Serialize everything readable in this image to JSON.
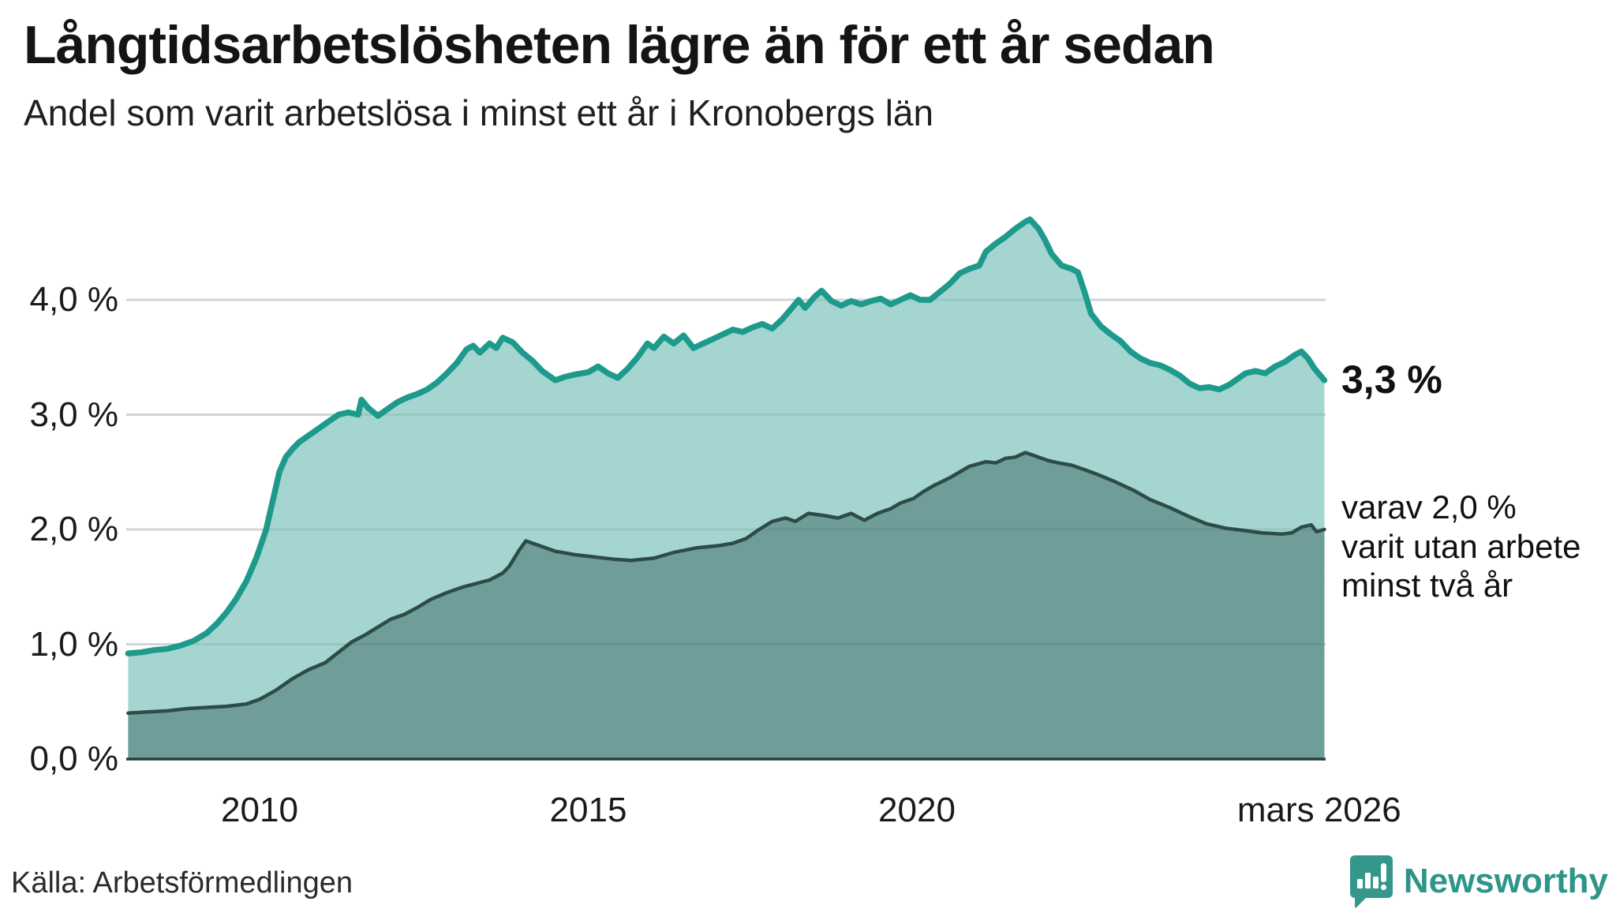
{
  "header": {
    "title": "Långtidsarbetslösheten lägre än för ett år sedan",
    "subtitle": "Andel som varit arbetslösa i minst ett år i Kronobergs län"
  },
  "annotations": {
    "end_value_label": "3,3 %",
    "end_note_lines": [
      "varav 2,0 %",
      "varit utan arbete",
      "minst två år"
    ]
  },
  "footer": {
    "source": "Källa: Arbetsförmedlingen",
    "brand": "Newsworthy"
  },
  "colors": {
    "line_one_year": "#1d9a8c",
    "fill_one_year": "#a4d5d0",
    "line_two_years": "#2d4c48",
    "fill_two_years": "#6f9d99",
    "gridline": "#e4e4e8",
    "gridline_overlay": "rgba(45,76,72,0.10)",
    "baseline": "#20403c",
    "brand_teal": "#2e958a"
  },
  "chart_data": {
    "type": "area",
    "title": "Långtidsarbetslösheten lägre än för ett år sedan",
    "subtitle": "Andel som varit arbetslösa i minst ett år i Kronobergs län",
    "unit": "%",
    "grid": true,
    "x_axis": {
      "range_years": [
        2008.0,
        2026.2
      ],
      "ticks": [
        {
          "label": "2010",
          "year": 2010.0
        },
        {
          "label": "2015",
          "year": 2015.0
        },
        {
          "label": "2020",
          "year": 2020.0
        },
        {
          "label": "mars 2026",
          "year": 2026.12
        }
      ]
    },
    "y_axis": {
      "range": [
        0,
        4.7
      ],
      "gridline_values": [
        1,
        2,
        3,
        4
      ],
      "tick_labels": [
        {
          "label": "0,0 %",
          "value": 0
        },
        {
          "label": "1,0 %",
          "value": 1
        },
        {
          "label": "2,0 %",
          "value": 2
        },
        {
          "label": "3,0 %",
          "value": 3
        },
        {
          "label": "4,0 %",
          "value": 4
        }
      ]
    },
    "series": [
      {
        "name": "arbetslösa minst ett år",
        "end_label": "3,3 %",
        "end_value": 3.3,
        "points": [
          [
            2008.0,
            0.92
          ],
          [
            2008.2,
            0.93
          ],
          [
            2008.4,
            0.95
          ],
          [
            2008.6,
            0.96
          ],
          [
            2008.8,
            0.99
          ],
          [
            2009.0,
            1.03
          ],
          [
            2009.2,
            1.1
          ],
          [
            2009.35,
            1.18
          ],
          [
            2009.5,
            1.28
          ],
          [
            2009.65,
            1.4
          ],
          [
            2009.8,
            1.55
          ],
          [
            2009.95,
            1.75
          ],
          [
            2010.1,
            2.0
          ],
          [
            2010.2,
            2.25
          ],
          [
            2010.3,
            2.5
          ],
          [
            2010.4,
            2.63
          ],
          [
            2010.5,
            2.7
          ],
          [
            2010.6,
            2.76
          ],
          [
            2010.7,
            2.8
          ],
          [
            2010.85,
            2.86
          ],
          [
            2011.0,
            2.92
          ],
          [
            2011.1,
            2.96
          ],
          [
            2011.2,
            3.0
          ],
          [
            2011.35,
            3.02
          ],
          [
            2011.5,
            3.0
          ],
          [
            2011.55,
            3.13
          ],
          [
            2011.65,
            3.06
          ],
          [
            2011.8,
            2.99
          ],
          [
            2011.95,
            3.05
          ],
          [
            2012.1,
            3.11
          ],
          [
            2012.25,
            3.15
          ],
          [
            2012.4,
            3.18
          ],
          [
            2012.55,
            3.22
          ],
          [
            2012.7,
            3.28
          ],
          [
            2012.85,
            3.36
          ],
          [
            2013.0,
            3.45
          ],
          [
            2013.15,
            3.57
          ],
          [
            2013.25,
            3.6
          ],
          [
            2013.35,
            3.54
          ],
          [
            2013.5,
            3.62
          ],
          [
            2013.6,
            3.58
          ],
          [
            2013.7,
            3.67
          ],
          [
            2013.85,
            3.63
          ],
          [
            2014.0,
            3.54
          ],
          [
            2014.15,
            3.47
          ],
          [
            2014.3,
            3.38
          ],
          [
            2014.5,
            3.3
          ],
          [
            2014.65,
            3.33
          ],
          [
            2014.8,
            3.35
          ],
          [
            2015.0,
            3.37
          ],
          [
            2015.15,
            3.42
          ],
          [
            2015.3,
            3.36
          ],
          [
            2015.45,
            3.32
          ],
          [
            2015.6,
            3.4
          ],
          [
            2015.75,
            3.5
          ],
          [
            2015.9,
            3.62
          ],
          [
            2016.0,
            3.58
          ],
          [
            2016.15,
            3.68
          ],
          [
            2016.3,
            3.62
          ],
          [
            2016.45,
            3.69
          ],
          [
            2016.6,
            3.58
          ],
          [
            2016.75,
            3.62
          ],
          [
            2016.9,
            3.66
          ],
          [
            2017.05,
            3.7
          ],
          [
            2017.2,
            3.74
          ],
          [
            2017.35,
            3.72
          ],
          [
            2017.5,
            3.76
          ],
          [
            2017.65,
            3.79
          ],
          [
            2017.8,
            3.75
          ],
          [
            2017.95,
            3.83
          ],
          [
            2018.1,
            3.93
          ],
          [
            2018.2,
            4.0
          ],
          [
            2018.3,
            3.93
          ],
          [
            2018.45,
            4.03
          ],
          [
            2018.55,
            4.08
          ],
          [
            2018.7,
            3.99
          ],
          [
            2018.85,
            3.95
          ],
          [
            2019.0,
            3.99
          ],
          [
            2019.15,
            3.96
          ],
          [
            2019.3,
            3.99
          ],
          [
            2019.45,
            4.01
          ],
          [
            2019.6,
            3.96
          ],
          [
            2019.75,
            4.0
          ],
          [
            2019.9,
            4.04
          ],
          [
            2020.05,
            4.0
          ],
          [
            2020.2,
            4.0
          ],
          [
            2020.35,
            4.07
          ],
          [
            2020.5,
            4.14
          ],
          [
            2020.65,
            4.23
          ],
          [
            2020.8,
            4.27
          ],
          [
            2020.95,
            4.3
          ],
          [
            2021.05,
            4.42
          ],
          [
            2021.2,
            4.49
          ],
          [
            2021.35,
            4.55
          ],
          [
            2021.5,
            4.62
          ],
          [
            2021.65,
            4.68
          ],
          [
            2021.72,
            4.7
          ],
          [
            2021.85,
            4.62
          ],
          [
            2021.95,
            4.52
          ],
          [
            2022.05,
            4.4
          ],
          [
            2022.2,
            4.3
          ],
          [
            2022.35,
            4.27
          ],
          [
            2022.45,
            4.24
          ],
          [
            2022.55,
            4.07
          ],
          [
            2022.65,
            3.88
          ],
          [
            2022.8,
            3.77
          ],
          [
            2022.95,
            3.7
          ],
          [
            2023.1,
            3.64
          ],
          [
            2023.25,
            3.55
          ],
          [
            2023.4,
            3.49
          ],
          [
            2023.55,
            3.45
          ],
          [
            2023.7,
            3.43
          ],
          [
            2023.85,
            3.39
          ],
          [
            2024.0,
            3.34
          ],
          [
            2024.15,
            3.27
          ],
          [
            2024.3,
            3.23
          ],
          [
            2024.45,
            3.24
          ],
          [
            2024.6,
            3.22
          ],
          [
            2024.75,
            3.26
          ],
          [
            2024.9,
            3.32
          ],
          [
            2025.0,
            3.36
          ],
          [
            2025.15,
            3.38
          ],
          [
            2025.3,
            3.36
          ],
          [
            2025.45,
            3.42
          ],
          [
            2025.6,
            3.46
          ],
          [
            2025.75,
            3.52
          ],
          [
            2025.85,
            3.55
          ],
          [
            2025.95,
            3.49
          ],
          [
            2026.05,
            3.4
          ],
          [
            2026.2,
            3.3
          ]
        ]
      },
      {
        "name": "varav minst två år",
        "end_label": "varav 2,0 % varit utan arbete minst två år",
        "end_value": 2.0,
        "points": [
          [
            2008.0,
            0.4
          ],
          [
            2008.3,
            0.41
          ],
          [
            2008.6,
            0.42
          ],
          [
            2008.9,
            0.44
          ],
          [
            2009.2,
            0.45
          ],
          [
            2009.5,
            0.46
          ],
          [
            2009.8,
            0.48
          ],
          [
            2010.0,
            0.52
          ],
          [
            2010.25,
            0.6
          ],
          [
            2010.5,
            0.7
          ],
          [
            2010.75,
            0.78
          ],
          [
            2011.0,
            0.84
          ],
          [
            2011.2,
            0.93
          ],
          [
            2011.4,
            1.02
          ],
          [
            2011.6,
            1.08
          ],
          [
            2011.8,
            1.15
          ],
          [
            2012.0,
            1.22
          ],
          [
            2012.2,
            1.26
          ],
          [
            2012.4,
            1.32
          ],
          [
            2012.6,
            1.39
          ],
          [
            2012.85,
            1.45
          ],
          [
            2013.1,
            1.5
          ],
          [
            2013.3,
            1.53
          ],
          [
            2013.5,
            1.56
          ],
          [
            2013.7,
            1.62
          ],
          [
            2013.8,
            1.68
          ],
          [
            2013.95,
            1.82
          ],
          [
            2014.05,
            1.9
          ],
          [
            2014.2,
            1.87
          ],
          [
            2014.35,
            1.84
          ],
          [
            2014.5,
            1.81
          ],
          [
            2014.8,
            1.78
          ],
          [
            2015.1,
            1.76
          ],
          [
            2015.4,
            1.74
          ],
          [
            2015.65,
            1.73
          ],
          [
            2016.0,
            1.75
          ],
          [
            2016.3,
            1.8
          ],
          [
            2016.65,
            1.84
          ],
          [
            2017.0,
            1.86
          ],
          [
            2017.2,
            1.88
          ],
          [
            2017.4,
            1.92
          ],
          [
            2017.6,
            2.0
          ],
          [
            2017.8,
            2.07
          ],
          [
            2018.0,
            2.1
          ],
          [
            2018.15,
            2.07
          ],
          [
            2018.35,
            2.14
          ],
          [
            2018.6,
            2.12
          ],
          [
            2018.8,
            2.1
          ],
          [
            2019.0,
            2.14
          ],
          [
            2019.2,
            2.08
          ],
          [
            2019.4,
            2.14
          ],
          [
            2019.6,
            2.18
          ],
          [
            2019.75,
            2.23
          ],
          [
            2019.95,
            2.27
          ],
          [
            2020.1,
            2.33
          ],
          [
            2020.25,
            2.38
          ],
          [
            2020.5,
            2.45
          ],
          [
            2020.8,
            2.55
          ],
          [
            2021.05,
            2.59
          ],
          [
            2021.2,
            2.58
          ],
          [
            2021.35,
            2.62
          ],
          [
            2021.5,
            2.63
          ],
          [
            2021.65,
            2.67
          ],
          [
            2021.8,
            2.64
          ],
          [
            2022.0,
            2.6
          ],
          [
            2022.15,
            2.58
          ],
          [
            2022.35,
            2.56
          ],
          [
            2022.55,
            2.52
          ],
          [
            2022.7,
            2.49
          ],
          [
            2023.0,
            2.42
          ],
          [
            2023.3,
            2.34
          ],
          [
            2023.55,
            2.26
          ],
          [
            2023.85,
            2.19
          ],
          [
            2024.15,
            2.11
          ],
          [
            2024.4,
            2.05
          ],
          [
            2024.7,
            2.01
          ],
          [
            2025.0,
            1.99
          ],
          [
            2025.25,
            1.97
          ],
          [
            2025.55,
            1.96
          ],
          [
            2025.7,
            1.97
          ],
          [
            2025.85,
            2.02
          ],
          [
            2026.0,
            2.04
          ],
          [
            2026.08,
            1.98
          ],
          [
            2026.2,
            2.0
          ]
        ]
      }
    ],
    "legend_position": "none"
  }
}
